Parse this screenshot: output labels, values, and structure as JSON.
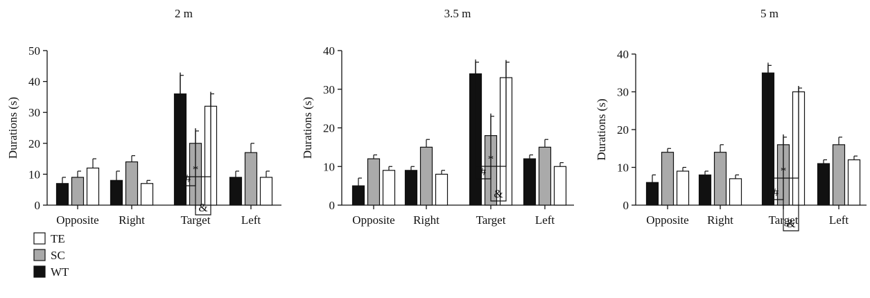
{
  "legend": [
    {
      "label": "TE",
      "color": "#ffffff"
    },
    {
      "label": "SC",
      "color": "#aaaaaa"
    },
    {
      "label": "WT",
      "color": "#111111"
    }
  ],
  "chart_data": [
    {
      "type": "bar",
      "title": "2 m",
      "ylabel": "Durations (s)",
      "xlabel": "",
      "ylim": [
        0,
        50
      ],
      "yticks": [
        0,
        10,
        20,
        30,
        40,
        50
      ],
      "categories": [
        "Opposite",
        "Right",
        "Target",
        "Left"
      ],
      "series": [
        {
          "name": "WT",
          "color": "#111111",
          "values": [
            7,
            8,
            36,
            9
          ],
          "errors": [
            2,
            3,
            6,
            2
          ]
        },
        {
          "name": "SC",
          "color": "#aaaaaa",
          "values": [
            9,
            14,
            20,
            17
          ],
          "errors": [
            2,
            2,
            4,
            3
          ]
        },
        {
          "name": "TE",
          "color": "#ffffff",
          "values": [
            12,
            7,
            32,
            9
          ],
          "errors": [
            3,
            1,
            4,
            2
          ]
        }
      ],
      "significance": [
        {
          "label": "#",
          "from": "WT",
          "to": "SC"
        },
        {
          "label": "&",
          "from": "SC",
          "to": "TE"
        },
        {
          "label": "*",
          "from": "WT",
          "to": "TE"
        }
      ]
    },
    {
      "type": "bar",
      "title": "3.5 m",
      "ylabel": "Durations (s)",
      "xlabel": "",
      "ylim": [
        0,
        40
      ],
      "yticks": [
        0,
        10,
        20,
        30,
        40
      ],
      "categories": [
        "Opposite",
        "Right",
        "Target",
        "Left"
      ],
      "series": [
        {
          "name": "WT",
          "color": "#111111",
          "values": [
            5,
            9,
            34,
            12
          ],
          "errors": [
            2,
            1,
            3,
            1
          ]
        },
        {
          "name": "SC",
          "color": "#aaaaaa",
          "values": [
            12,
            15,
            18,
            15
          ],
          "errors": [
            1,
            2,
            5,
            2
          ]
        },
        {
          "name": "TE",
          "color": "#ffffff",
          "values": [
            9,
            8,
            33,
            10
          ],
          "errors": [
            1,
            1,
            4,
            1
          ]
        }
      ],
      "significance": [
        {
          "label": "#",
          "from": "WT",
          "to": "SC"
        },
        {
          "label": "&",
          "from": "SC",
          "to": "TE"
        },
        {
          "label": "*",
          "from": "WT",
          "to": "TE"
        }
      ]
    },
    {
      "type": "bar",
      "title": "5 m",
      "ylabel": "Durations (s)",
      "xlabel": "",
      "ylim": [
        0,
        40
      ],
      "yticks": [
        0,
        10,
        20,
        30,
        40
      ],
      "categories": [
        "Opposite",
        "Right",
        "Target",
        "Left"
      ],
      "series": [
        {
          "name": "WT",
          "color": "#111111",
          "values": [
            6,
            8,
            35,
            11
          ],
          "errors": [
            2,
            1,
            2,
            1
          ]
        },
        {
          "name": "SC",
          "color": "#aaaaaa",
          "values": [
            14,
            14,
            16,
            16
          ],
          "errors": [
            1,
            2,
            2,
            2
          ]
        },
        {
          "name": "TE",
          "color": "#ffffff",
          "values": [
            9,
            7,
            30,
            12
          ],
          "errors": [
            1,
            1,
            1,
            1
          ]
        }
      ],
      "significance": [
        {
          "label": "#",
          "from": "WT",
          "to": "SC"
        },
        {
          "label": "&",
          "from": "SC",
          "to": "TE"
        },
        {
          "label": "*",
          "from": "WT",
          "to": "TE"
        }
      ]
    }
  ]
}
